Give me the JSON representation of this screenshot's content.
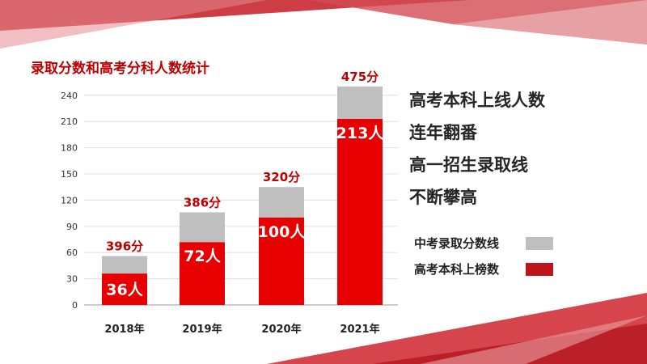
{
  "chart_data": {
    "type": "bar",
    "title": "录取分数和高考分科人数统计",
    "categories": [
      "2018年",
      "2019年",
      "2020年",
      "2021年"
    ],
    "yticks": [
      0,
      30,
      60,
      90,
      120,
      150,
      180,
      210,
      240
    ],
    "ylim": [
      0,
      250
    ],
    "stacked": true,
    "series": [
      {
        "name": "高考本科上榜数",
        "color": "#e80000",
        "values": [
          36,
          72,
          100,
          213
        ],
        "labels": [
          "36人",
          "72人",
          "100人",
          "213人"
        ]
      },
      {
        "name": "中考录取分数线",
        "color": "#bfbfbf",
        "values": [
          20,
          34,
          35,
          37
        ],
        "labels": [
          "396分",
          "386分",
          "320分",
          "475分"
        ]
      }
    ],
    "legend_position": "right"
  },
  "side_texts": [
    "高考本科上线人数",
    "连年翻番",
    "高一招生录取线",
    "不断攀高"
  ]
}
